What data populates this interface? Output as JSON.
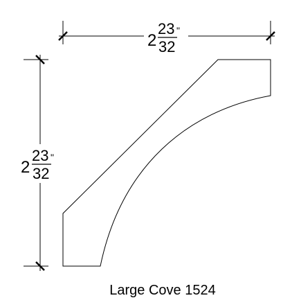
{
  "drawing": {
    "width_dimension": {
      "whole": "2",
      "numerator": "23",
      "denominator": "32",
      "unit": "\""
    },
    "height_dimension": {
      "whole": "2",
      "numerator": "23",
      "denominator": "32",
      "unit": "\""
    },
    "caption": "Large Cove 1524",
    "line_color": "#000000",
    "background_color": "#ffffff"
  }
}
